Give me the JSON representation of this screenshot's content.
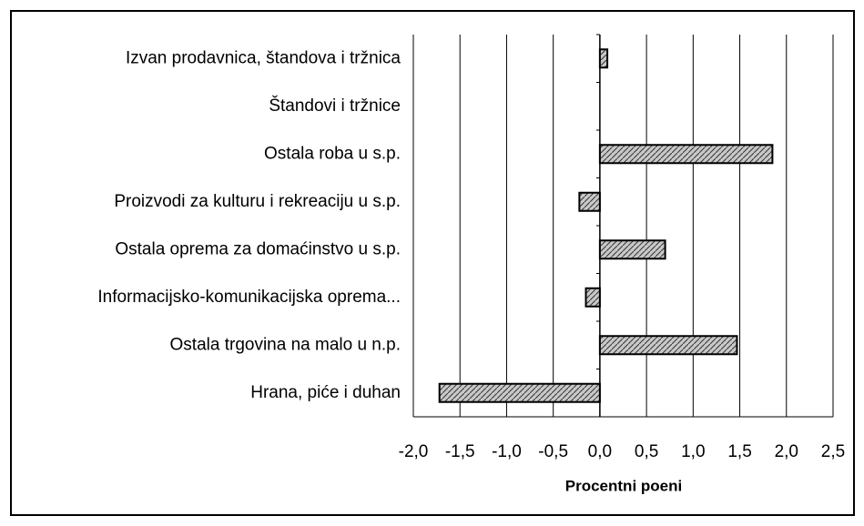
{
  "chart_data": {
    "type": "hbar",
    "x_label": "Procentni poeni",
    "categories": [
      "Izvan prodavnica, štandova i tržnica",
      "Štandovi i tržnice",
      "Ostala roba u s.p.",
      "Proizvodi za kulturu i rekreaciju u s.p.",
      "Ostala oprema za domaćinstvo u s.p.",
      "Informacijsko-komunikacijska oprema...",
      "Ostala trgovina na malo u n.p.",
      "Hrana, piće i duhan"
    ],
    "values": [
      0.08,
      0,
      1.85,
      -0.22,
      0.7,
      -0.15,
      1.47,
      -1.72
    ],
    "color": "#b0b0b0",
    "xlim": [
      -2.0,
      2.5
    ],
    "xticks": [
      {
        "value": -2.0,
        "label": "-2,0"
      },
      {
        "value": -1.5,
        "label": "-1,5"
      },
      {
        "value": -1.0,
        "label": "-1,0"
      },
      {
        "value": -0.5,
        "label": "-0,5"
      },
      {
        "value": 0.0,
        "label": "0,0"
      },
      {
        "value": 0.5,
        "label": "0,5"
      },
      {
        "value": 1.0,
        "label": "1,0"
      },
      {
        "value": 1.5,
        "label": "1,5"
      },
      {
        "value": 2.0,
        "label": "2,0"
      },
      {
        "value": 2.5,
        "label": "2,5"
      }
    ],
    "grid": true
  }
}
